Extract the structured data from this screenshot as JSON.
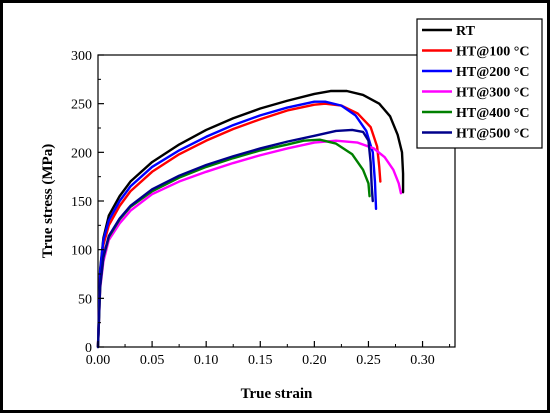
{
  "chart_data": {
    "type": "line",
    "title": "",
    "xlabel": "True strain",
    "ylabel": "True stress (MPa)",
    "xlim": [
      0.0,
      0.33
    ],
    "ylim": [
      0,
      300
    ],
    "xticks": [
      "0.00",
      "0.05",
      "0.10",
      "0.15",
      "0.20",
      "0.25",
      "0.30"
    ],
    "yticks": [
      "0",
      "50",
      "100",
      "150",
      "200",
      "250",
      "300"
    ],
    "grid": false,
    "legend_position": "top-right",
    "series": [
      {
        "name": "RT",
        "color": "#000000",
        "points": [
          [
            0.0,
            0
          ],
          [
            0.002,
            80
          ],
          [
            0.005,
            112
          ],
          [
            0.01,
            135
          ],
          [
            0.02,
            155
          ],
          [
            0.03,
            170
          ],
          [
            0.05,
            190
          ],
          [
            0.075,
            208
          ],
          [
            0.1,
            223
          ],
          [
            0.125,
            235
          ],
          [
            0.15,
            245
          ],
          [
            0.175,
            253
          ],
          [
            0.2,
            260
          ],
          [
            0.215,
            263
          ],
          [
            0.23,
            263
          ],
          [
            0.245,
            259
          ],
          [
            0.26,
            250
          ],
          [
            0.27,
            237
          ],
          [
            0.277,
            218
          ],
          [
            0.281,
            200
          ],
          [
            0.282,
            178
          ],
          [
            0.282,
            159
          ]
        ]
      },
      {
        "name": "HT@100 °C",
        "color": "#ff0000",
        "points": [
          [
            0.0,
            0
          ],
          [
            0.002,
            75
          ],
          [
            0.005,
            105
          ],
          [
            0.01,
            125
          ],
          [
            0.02,
            145
          ],
          [
            0.03,
            160
          ],
          [
            0.05,
            180
          ],
          [
            0.075,
            198
          ],
          [
            0.1,
            212
          ],
          [
            0.125,
            224
          ],
          [
            0.15,
            234
          ],
          [
            0.175,
            243
          ],
          [
            0.2,
            249
          ],
          [
            0.21,
            250
          ],
          [
            0.225,
            248
          ],
          [
            0.24,
            240
          ],
          [
            0.252,
            226
          ],
          [
            0.258,
            206
          ],
          [
            0.26,
            185
          ],
          [
            0.261,
            170
          ]
        ]
      },
      {
        "name": "HT@200 °C",
        "color": "#0000ff",
        "points": [
          [
            0.0,
            0
          ],
          [
            0.002,
            78
          ],
          [
            0.005,
            110
          ],
          [
            0.01,
            130
          ],
          [
            0.02,
            150
          ],
          [
            0.03,
            165
          ],
          [
            0.05,
            185
          ],
          [
            0.075,
            202
          ],
          [
            0.1,
            216
          ],
          [
            0.125,
            228
          ],
          [
            0.15,
            238
          ],
          [
            0.175,
            246
          ],
          [
            0.2,
            252
          ],
          [
            0.21,
            252
          ],
          [
            0.225,
            248
          ],
          [
            0.238,
            238
          ],
          [
            0.248,
            222
          ],
          [
            0.254,
            200
          ],
          [
            0.256,
            170
          ],
          [
            0.257,
            142
          ]
        ]
      },
      {
        "name": "HT@300 °C",
        "color": "#ff00ff",
        "points": [
          [
            0.0,
            0
          ],
          [
            0.002,
            60
          ],
          [
            0.005,
            88
          ],
          [
            0.01,
            110
          ],
          [
            0.02,
            127
          ],
          [
            0.03,
            140
          ],
          [
            0.05,
            157
          ],
          [
            0.075,
            170
          ],
          [
            0.1,
            180
          ],
          [
            0.125,
            189
          ],
          [
            0.15,
            197
          ],
          [
            0.175,
            204
          ],
          [
            0.2,
            210
          ],
          [
            0.22,
            212
          ],
          [
            0.24,
            210
          ],
          [
            0.255,
            204
          ],
          [
            0.265,
            195
          ],
          [
            0.273,
            182
          ],
          [
            0.278,
            168
          ],
          [
            0.28,
            158
          ]
        ]
      },
      {
        "name": "HT@400 °C",
        "color": "#008000",
        "points": [
          [
            0.0,
            0
          ],
          [
            0.002,
            62
          ],
          [
            0.005,
            92
          ],
          [
            0.01,
            113
          ],
          [
            0.02,
            131
          ],
          [
            0.03,
            144
          ],
          [
            0.05,
            160
          ],
          [
            0.075,
            174
          ],
          [
            0.1,
            185
          ],
          [
            0.125,
            194
          ],
          [
            0.15,
            202
          ],
          [
            0.175,
            208
          ],
          [
            0.19,
            212
          ],
          [
            0.205,
            213
          ],
          [
            0.22,
            209
          ],
          [
            0.235,
            198
          ],
          [
            0.245,
            182
          ],
          [
            0.25,
            168
          ],
          [
            0.251,
            155
          ]
        ]
      },
      {
        "name": "HT@500 °C",
        "color": "#00008b",
        "points": [
          [
            0.0,
            0
          ],
          [
            0.002,
            63
          ],
          [
            0.005,
            93
          ],
          [
            0.01,
            114
          ],
          [
            0.02,
            132
          ],
          [
            0.03,
            145
          ],
          [
            0.05,
            162
          ],
          [
            0.075,
            176
          ],
          [
            0.1,
            187
          ],
          [
            0.125,
            196
          ],
          [
            0.15,
            204
          ],
          [
            0.175,
            211
          ],
          [
            0.2,
            217
          ],
          [
            0.22,
            222
          ],
          [
            0.235,
            223
          ],
          [
            0.245,
            221
          ],
          [
            0.25,
            212
          ],
          [
            0.252,
            190
          ],
          [
            0.253,
            165
          ],
          [
            0.254,
            150
          ]
        ]
      }
    ]
  }
}
